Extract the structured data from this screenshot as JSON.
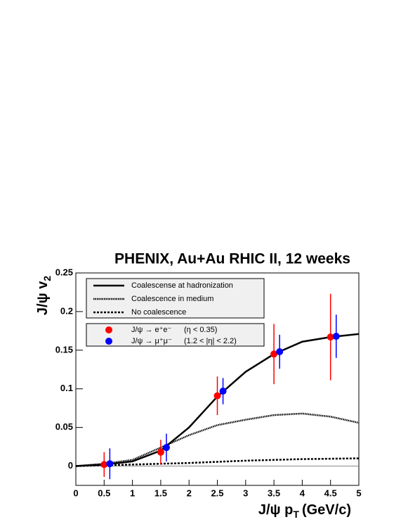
{
  "chart_data": {
    "type": "line",
    "title": "PHENIX, Au+Au RHIC II, 12 weeks",
    "x_label": "J/ψ p",
    "x_label_sub": "T",
    "x_label_unit": "(GeV/c)",
    "y_label": "J/ψ v",
    "y_label_sub": "2",
    "xlim": [
      0,
      5
    ],
    "ylim": [
      -0.025,
      0.25
    ],
    "xticks": [
      0,
      0.5,
      1,
      1.5,
      2,
      2.5,
      3,
      3.5,
      4,
      4.5,
      5
    ],
    "yticks": [
      0,
      0.05,
      0.1,
      0.15,
      0.2,
      0.25
    ],
    "series": [
      {
        "name": "Coalescense at hadronization",
        "kind": "line",
        "dash": "solid",
        "color": "#000000",
        "x": [
          0,
          0.5,
          1,
          1.5,
          2,
          2.5,
          3,
          3.5,
          4,
          4.5,
          5
        ],
        "values": [
          0,
          0.002,
          0.006,
          0.02,
          0.05,
          0.09,
          0.122,
          0.145,
          0.161,
          0.167,
          0.171
        ]
      },
      {
        "name": "Coalescence in medium",
        "kind": "line",
        "dash": "dotted",
        "color": "#000000",
        "x": [
          0,
          0.5,
          1,
          1.5,
          2,
          2.5,
          3,
          3.5,
          4,
          4.5,
          5
        ],
        "values": [
          0,
          0.003,
          0.008,
          0.024,
          0.04,
          0.053,
          0.06,
          0.066,
          0.068,
          0.064,
          0.056
        ]
      },
      {
        "name": "No coalescence",
        "kind": "line",
        "dash": "dashed",
        "color": "#000000",
        "x": [
          0,
          1,
          2,
          3,
          4,
          5
        ],
        "values": [
          0,
          0.002,
          0.004,
          0.007,
          0.009,
          0.01
        ]
      },
      {
        "name": "J/ψ → e⁺e⁻",
        "range": "(η < 0.35)",
        "kind": "points",
        "color": "#ff0000",
        "x": [
          0.5,
          1.5,
          2.5,
          3.5,
          4.5
        ],
        "values": [
          0.002,
          0.018,
          0.091,
          0.145,
          0.167
        ],
        "errors": [
          0.016,
          0.016,
          0.025,
          0.039,
          0.056
        ]
      },
      {
        "name": "J/ψ → μ⁺μ⁻",
        "range": "(1.2 < |η| < 2.2)",
        "kind": "points",
        "color": "#0000ff",
        "x": [
          0.6,
          1.6,
          2.6,
          3.6,
          4.6
        ],
        "values": [
          0.003,
          0.024,
          0.097,
          0.148,
          0.168
        ],
        "errors": [
          0.02,
          0.018,
          0.017,
          0.022,
          0.028
        ]
      }
    ]
  }
}
